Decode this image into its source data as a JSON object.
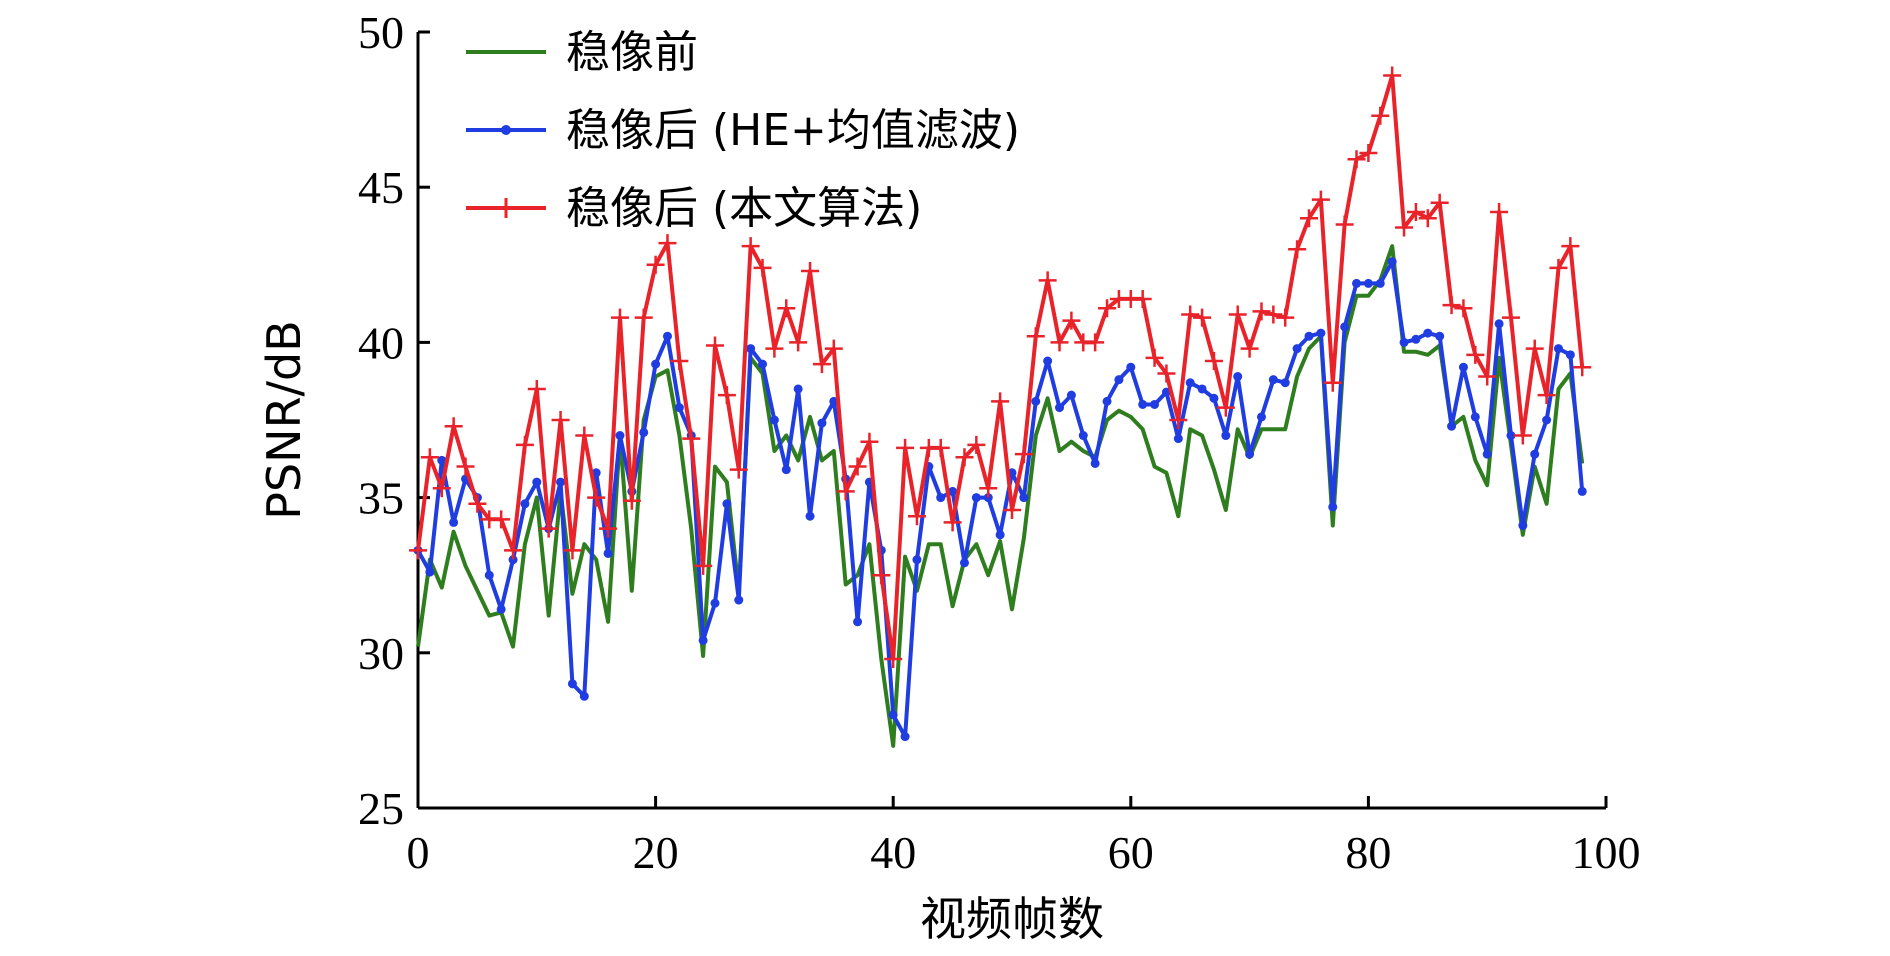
{
  "chart_data": {
    "type": "line",
    "xlabel": "视频帧数",
    "ylabel": "PSNR/dB",
    "xlim": [
      0,
      100
    ],
    "ylim": [
      25,
      50
    ],
    "xticks": [
      0,
      20,
      40,
      60,
      80,
      100
    ],
    "yticks": [
      25,
      30,
      35,
      40,
      45,
      50
    ],
    "grid": false,
    "legend_position": "top-left",
    "series": [
      {
        "name": "稳像前",
        "color": "#2e7d1e",
        "marker": "none",
        "values": [
          30.2,
          33.0,
          32.1,
          33.9,
          32.8,
          32.0,
          31.2,
          31.3,
          30.2,
          33.5,
          35.0,
          31.2,
          35.2,
          31.9,
          33.5,
          33.0,
          31.0,
          37.0,
          32.0,
          37.5,
          38.9,
          39.1,
          37.0,
          34.0,
          29.9,
          36.0,
          35.5,
          32.0,
          39.5,
          39.0,
          36.5,
          37.0,
          36.2,
          37.6,
          36.2,
          36.5,
          32.2,
          32.5,
          33.5,
          29.8,
          27.0,
          33.1,
          32.0,
          33.5,
          33.5,
          31.5,
          33.0,
          33.5,
          32.5,
          33.6,
          31.4,
          33.7,
          37.0,
          38.2,
          36.5,
          36.8,
          36.5,
          36.3,
          37.5,
          37.8,
          37.6,
          37.2,
          36.0,
          35.8,
          34.4,
          37.2,
          37.0,
          35.9,
          34.6,
          37.2,
          36.3,
          37.2,
          37.2,
          37.2,
          38.9,
          39.8,
          40.2,
          34.1,
          40.0,
          41.5,
          41.5,
          42.0,
          43.1,
          39.7,
          39.7,
          39.6,
          39.9,
          37.3,
          37.6,
          36.2,
          35.4,
          39.5,
          36.7,
          33.8,
          36.0,
          34.8,
          38.5,
          39.0,
          36.1
        ]
      },
      {
        "name": "稳像后 (HE+均值滤波)",
        "color": "#1f3de0",
        "marker": "dot",
        "values": [
          33.3,
          32.6,
          36.2,
          34.2,
          35.6,
          35.0,
          32.5,
          31.4,
          33.0,
          34.8,
          35.5,
          34.0,
          35.5,
          29.0,
          28.6,
          35.8,
          33.2,
          37.0,
          35.2,
          37.1,
          39.3,
          40.2,
          37.9,
          37.0,
          30.4,
          31.6,
          34.8,
          31.7,
          39.8,
          39.3,
          37.5,
          35.9,
          38.5,
          34.4,
          37.4,
          38.1,
          35.6,
          31.0,
          35.5,
          33.3,
          28.0,
          27.3,
          33.0,
          36.0,
          35.0,
          35.2,
          32.9,
          35.0,
          35.0,
          33.8,
          35.8,
          35.0,
          38.1,
          39.4,
          37.9,
          38.3,
          37.0,
          36.1,
          38.1,
          38.8,
          39.2,
          38.0,
          38.0,
          38.4,
          36.9,
          38.7,
          38.5,
          38.2,
          37.0,
          38.9,
          36.4,
          37.6,
          38.8,
          38.7,
          39.8,
          40.2,
          40.3,
          34.7,
          40.5,
          41.9,
          41.9,
          41.9,
          42.6,
          40.0,
          40.1,
          40.3,
          40.2,
          37.3,
          39.2,
          37.6,
          36.4,
          40.6,
          37.0,
          34.1,
          36.4,
          37.5,
          39.8,
          39.6,
          35.2
        ]
      },
      {
        "name": "稳像后 (本文算法)",
        "color": "#e8232a",
        "marker": "plus",
        "values": [
          33.3,
          36.3,
          35.3,
          37.3,
          36.0,
          34.8,
          34.3,
          34.3,
          33.3,
          36.7,
          38.5,
          34.0,
          37.5,
          33.3,
          37.0,
          35.0,
          34.0,
          40.8,
          34.9,
          40.8,
          42.5,
          43.2,
          39.4,
          36.9,
          32.8,
          39.9,
          38.3,
          35.9,
          43.1,
          42.4,
          39.8,
          41.1,
          40.0,
          42.3,
          39.3,
          39.8,
          35.2,
          36.0,
          36.8,
          32.5,
          29.8,
          36.6,
          34.4,
          36.6,
          36.6,
          34.2,
          36.3,
          36.7,
          35.3,
          38.1,
          34.6,
          36.4,
          40.2,
          42.0,
          40.0,
          40.7,
          40.0,
          40.0,
          41.1,
          41.4,
          41.4,
          41.4,
          39.5,
          39.0,
          37.5,
          40.9,
          40.8,
          39.4,
          37.9,
          40.9,
          39.8,
          41.0,
          40.9,
          40.8,
          43.0,
          44.0,
          44.6,
          38.7,
          43.8,
          45.9,
          46.1,
          47.3,
          48.6,
          43.7,
          44.2,
          44.0,
          44.5,
          41.2,
          41.1,
          39.6,
          38.9,
          44.2,
          40.8,
          37.0,
          39.8,
          38.3,
          42.4,
          43.1,
          39.2
        ]
      }
    ]
  }
}
